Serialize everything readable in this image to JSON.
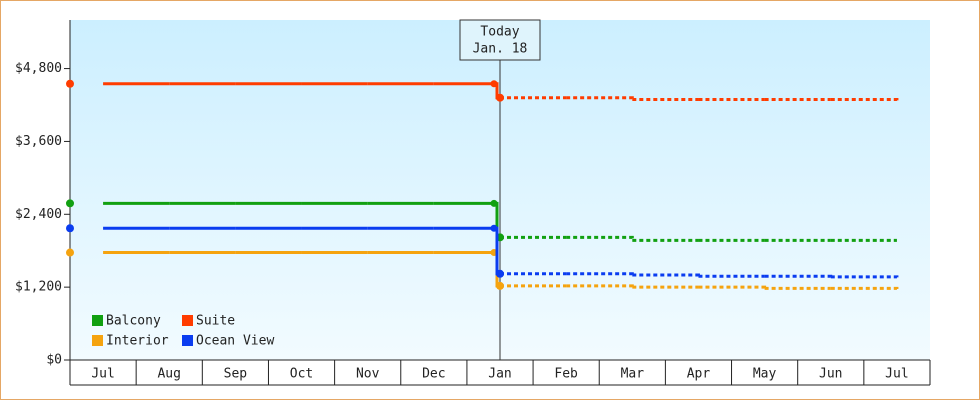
{
  "chart_data": {
    "type": "step-line",
    "categories": [
      "Jul",
      "Aug",
      "Sep",
      "Oct",
      "Nov",
      "Dec",
      "Jan",
      "Feb",
      "Mar",
      "Apr",
      "May",
      "Jun",
      "Jul"
    ],
    "series": [
      {
        "name": "Balcony",
        "color": "#11a011",
        "values": [
          2580,
          2580,
          2580,
          2580,
          2580,
          2580,
          2020,
          2020,
          1970,
          1970,
          1970,
          1970,
          1970
        ]
      },
      {
        "name": "Suite",
        "color": "#ff3c00",
        "values": [
          4550,
          4550,
          4550,
          4550,
          4550,
          4550,
          4320,
          4320,
          4290,
          4290,
          4290,
          4290,
          4270
        ]
      },
      {
        "name": "Interior",
        "color": "#f5a30f",
        "values": [
          1770,
          1770,
          1770,
          1770,
          1770,
          1770,
          1220,
          1220,
          1200,
          1200,
          1180,
          1180,
          1170
        ]
      },
      {
        "name": "Ocean View",
        "color": "#0a3cf0",
        "values": [
          2170,
          2170,
          2170,
          2170,
          2170,
          2170,
          1420,
          1420,
          1400,
          1380,
          1380,
          1370,
          1360
        ]
      }
    ],
    "ylim": [
      0,
      5600
    ],
    "yticks": [
      {
        "value": 0,
        "label": "$0"
      },
      {
        "value": 1200,
        "label": "$1,200"
      },
      {
        "value": 2400,
        "label": "$2,400"
      },
      {
        "value": 3600,
        "label": "$3,600"
      },
      {
        "value": 4800,
        "label": "$4,800"
      }
    ],
    "annotation": {
      "text": "Today",
      "date": "Jan. 18",
      "category": "Jan"
    },
    "legend": "bottom-left"
  }
}
